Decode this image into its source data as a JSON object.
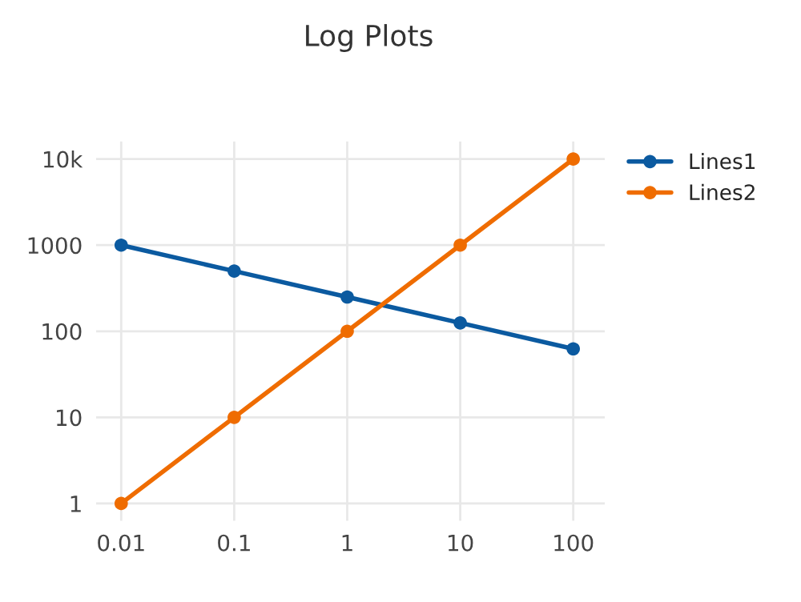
{
  "chart_data": {
    "type": "line",
    "title": "Log Plots",
    "x": [
      0.01,
      0.1,
      1,
      10,
      100
    ],
    "series": [
      {
        "name": "Lines1",
        "color": "#0b5aa0",
        "values": [
          1000,
          500,
          250,
          125,
          62.5
        ]
      },
      {
        "name": "Lines2",
        "color": "#ef6c00",
        "values": [
          1,
          10,
          100,
          1000,
          10000
        ]
      }
    ],
    "log": "xy",
    "xlim": [
      0.006,
      190
    ],
    "ylim": [
      0.63,
      16000
    ],
    "xticks": [
      {
        "value": 0.01,
        "label": "0.01"
      },
      {
        "value": 0.1,
        "label": "0.1"
      },
      1,
      10,
      100
    ],
    "yticks": [
      1,
      10,
      100,
      1000,
      {
        "value": 10000,
        "label": "10k"
      }
    ],
    "grid": true,
    "legend": "top right",
    "marker": "circle",
    "line_style": "solid"
  }
}
